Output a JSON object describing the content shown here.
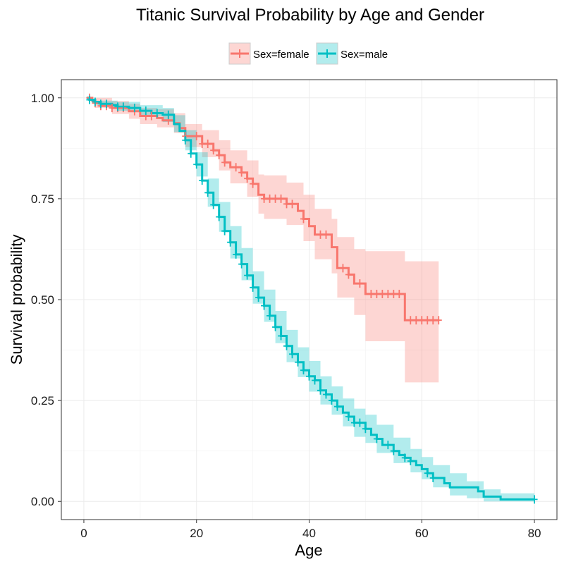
{
  "chart_data": {
    "type": "line",
    "subtype": "kaplan-meier survival curve with confidence bands",
    "title": "Titanic Survival Probability by Age and Gender",
    "xlabel": "Age",
    "ylabel": "Survival probability",
    "xlim": [
      -4,
      84
    ],
    "ylim": [
      -0.045,
      1.045
    ],
    "x_ticks": [
      0,
      20,
      40,
      60,
      80
    ],
    "y_ticks": [
      0,
      0.25,
      0.5,
      0.75,
      1.0
    ],
    "x_tick_labels": [
      "0",
      "20",
      "40",
      "60",
      "80"
    ],
    "y_tick_labels": [
      "0.00",
      "0.25",
      "0.50",
      "0.75",
      "1.00"
    ],
    "grid": true,
    "legend_position": "top",
    "series": [
      {
        "name": "Sex=female",
        "color": "#F8766D",
        "band_color": "#F8766D",
        "steps": [
          [
            0.5,
            1.0
          ],
          [
            1.5,
            0.993
          ],
          [
            2,
            0.987
          ],
          [
            3,
            0.98
          ],
          [
            5,
            0.975
          ],
          [
            8,
            0.967
          ],
          [
            10,
            0.955
          ],
          [
            13,
            0.95
          ],
          [
            14,
            0.944
          ],
          [
            16,
            0.937
          ],
          [
            17,
            0.925
          ],
          [
            18,
            0.905
          ],
          [
            21,
            0.886
          ],
          [
            23,
            0.87
          ],
          [
            24,
            0.858
          ],
          [
            25,
            0.84
          ],
          [
            26,
            0.828
          ],
          [
            28,
            0.815
          ],
          [
            29,
            0.8
          ],
          [
            30,
            0.787
          ],
          [
            31,
            0.76
          ],
          [
            32,
            0.75
          ],
          [
            36,
            0.737
          ],
          [
            38,
            0.72
          ],
          [
            39,
            0.7
          ],
          [
            40,
            0.682
          ],
          [
            41,
            0.661
          ],
          [
            44,
            0.63
          ],
          [
            45,
            0.578
          ],
          [
            47,
            0.562
          ],
          [
            48,
            0.54
          ],
          [
            50,
            0.514
          ],
          [
            57,
            0.449
          ],
          [
            63,
            0.449
          ]
        ],
        "lower": [
          [
            0.5,
            1.0
          ],
          [
            2,
            0.975
          ],
          [
            5,
            0.96
          ],
          [
            8,
            0.948
          ],
          [
            10,
            0.935
          ],
          [
            13,
            0.927
          ],
          [
            16,
            0.913
          ],
          [
            18,
            0.878
          ],
          [
            21,
            0.853
          ],
          [
            24,
            0.82
          ],
          [
            26,
            0.788
          ],
          [
            29,
            0.755
          ],
          [
            31,
            0.713
          ],
          [
            32,
            0.7
          ],
          [
            36,
            0.685
          ],
          [
            39,
            0.645
          ],
          [
            41,
            0.6
          ],
          [
            44,
            0.565
          ],
          [
            45,
            0.505
          ],
          [
            48,
            0.462
          ],
          [
            50,
            0.397
          ],
          [
            57,
            0.295
          ],
          [
            63,
            0.295
          ]
        ],
        "upper": [
          [
            0.5,
            1.0
          ],
          [
            2,
            1.0
          ],
          [
            5,
            0.992
          ],
          [
            8,
            0.985
          ],
          [
            10,
            0.975
          ],
          [
            13,
            0.972
          ],
          [
            16,
            0.962
          ],
          [
            18,
            0.935
          ],
          [
            21,
            0.92
          ],
          [
            24,
            0.895
          ],
          [
            26,
            0.87
          ],
          [
            29,
            0.845
          ],
          [
            31,
            0.81
          ],
          [
            32,
            0.808
          ],
          [
            36,
            0.79
          ],
          [
            39,
            0.76
          ],
          [
            41,
            0.725
          ],
          [
            44,
            0.7
          ],
          [
            45,
            0.655
          ],
          [
            48,
            0.625
          ],
          [
            50,
            0.62
          ],
          [
            57,
            0.595
          ],
          [
            63,
            0.595
          ]
        ],
        "censor_x": [
          1,
          2,
          3,
          4,
          5,
          6,
          7,
          9,
          11,
          12,
          15,
          18,
          20,
          21,
          22,
          23,
          24,
          25,
          27,
          28,
          29,
          30,
          32,
          33,
          34,
          35,
          36,
          37,
          39,
          42,
          43,
          46,
          47,
          49,
          51,
          52,
          53,
          54,
          55,
          56,
          58,
          59,
          60,
          61,
          62,
          63
        ]
      },
      {
        "name": "Sex=male",
        "color": "#00BFC4",
        "band_color": "#00BFC4",
        "steps": [
          [
            0.5,
            1.0
          ],
          [
            1,
            0.995
          ],
          [
            2,
            0.99
          ],
          [
            3,
            0.985
          ],
          [
            5,
            0.982
          ],
          [
            6,
            0.978
          ],
          [
            8,
            0.975
          ],
          [
            10,
            0.968
          ],
          [
            12,
            0.962
          ],
          [
            14,
            0.958
          ],
          [
            16,
            0.935
          ],
          [
            17,
            0.918
          ],
          [
            18,
            0.895
          ],
          [
            19,
            0.862
          ],
          [
            20,
            0.835
          ],
          [
            21,
            0.795
          ],
          [
            22,
            0.765
          ],
          [
            23,
            0.735
          ],
          [
            24,
            0.705
          ],
          [
            25,
            0.67
          ],
          [
            26,
            0.642
          ],
          [
            27,
            0.612
          ],
          [
            28,
            0.588
          ],
          [
            29,
            0.56
          ],
          [
            30,
            0.53
          ],
          [
            31,
            0.505
          ],
          [
            32,
            0.485
          ],
          [
            33,
            0.46
          ],
          [
            34,
            0.432
          ],
          [
            35,
            0.41
          ],
          [
            36,
            0.385
          ],
          [
            37,
            0.365
          ],
          [
            38,
            0.345
          ],
          [
            39,
            0.325
          ],
          [
            40,
            0.31
          ],
          [
            41,
            0.3
          ],
          [
            42,
            0.275
          ],
          [
            43,
            0.265
          ],
          [
            44,
            0.25
          ],
          [
            45,
            0.235
          ],
          [
            46,
            0.22
          ],
          [
            47,
            0.21
          ],
          [
            48,
            0.195
          ],
          [
            50,
            0.18
          ],
          [
            51,
            0.165
          ],
          [
            52,
            0.155
          ],
          [
            53,
            0.14
          ],
          [
            55,
            0.125
          ],
          [
            56,
            0.115
          ],
          [
            57,
            0.108
          ],
          [
            58,
            0.1
          ],
          [
            59,
            0.09
          ],
          [
            60,
            0.08
          ],
          [
            61,
            0.07
          ],
          [
            62,
            0.058
          ],
          [
            64,
            0.045
          ],
          [
            65,
            0.035
          ],
          [
            70,
            0.025
          ],
          [
            71,
            0.012
          ],
          [
            74,
            0.005
          ],
          [
            80,
            0.005
          ]
        ],
        "lower": [
          [
            0.5,
            1.0
          ],
          [
            3,
            0.978
          ],
          [
            6,
            0.968
          ],
          [
            10,
            0.955
          ],
          [
            14,
            0.94
          ],
          [
            16,
            0.915
          ],
          [
            18,
            0.87
          ],
          [
            20,
            0.805
          ],
          [
            22,
            0.73
          ],
          [
            24,
            0.668
          ],
          [
            26,
            0.602
          ],
          [
            28,
            0.548
          ],
          [
            30,
            0.49
          ],
          [
            32,
            0.445
          ],
          [
            34,
            0.392
          ],
          [
            36,
            0.345
          ],
          [
            38,
            0.308
          ],
          [
            40,
            0.272
          ],
          [
            42,
            0.24
          ],
          [
            44,
            0.215
          ],
          [
            46,
            0.186
          ],
          [
            48,
            0.16
          ],
          [
            50,
            0.145
          ],
          [
            52,
            0.12
          ],
          [
            55,
            0.095
          ],
          [
            58,
            0.072
          ],
          [
            60,
            0.055
          ],
          [
            62,
            0.035
          ],
          [
            65,
            0.015
          ],
          [
            68,
            0.008
          ],
          [
            71,
            0.0
          ],
          [
            74,
            0.0
          ],
          [
            80,
            0.0
          ]
        ],
        "upper": [
          [
            0.5,
            1.0
          ],
          [
            3,
            0.993
          ],
          [
            6,
            0.99
          ],
          [
            10,
            0.982
          ],
          [
            14,
            0.975
          ],
          [
            16,
            0.957
          ],
          [
            18,
            0.92
          ],
          [
            20,
            0.865
          ],
          [
            22,
            0.8
          ],
          [
            24,
            0.742
          ],
          [
            26,
            0.682
          ],
          [
            28,
            0.628
          ],
          [
            30,
            0.57
          ],
          [
            32,
            0.525
          ],
          [
            34,
            0.472
          ],
          [
            36,
            0.425
          ],
          [
            38,
            0.382
          ],
          [
            40,
            0.348
          ],
          [
            42,
            0.31
          ],
          [
            44,
            0.285
          ],
          [
            46,
            0.255
          ],
          [
            48,
            0.23
          ],
          [
            50,
            0.215
          ],
          [
            52,
            0.19
          ],
          [
            55,
            0.158
          ],
          [
            58,
            0.13
          ],
          [
            60,
            0.11
          ],
          [
            62,
            0.09
          ],
          [
            65,
            0.07
          ],
          [
            68,
            0.05
          ],
          [
            71,
            0.03
          ],
          [
            74,
            0.02
          ],
          [
            80,
            0.02
          ]
        ],
        "censor_x": [
          1,
          2,
          3,
          4,
          6,
          7,
          9,
          11,
          13,
          15,
          18,
          19,
          20,
          21,
          22,
          23,
          24,
          25,
          26,
          27,
          28,
          29,
          30,
          31,
          32,
          33,
          34,
          35,
          36,
          37,
          38,
          39,
          40,
          41,
          42,
          43,
          44,
          45,
          47,
          48,
          49,
          50,
          52,
          54,
          55,
          57,
          58,
          61,
          62,
          80
        ]
      }
    ]
  }
}
